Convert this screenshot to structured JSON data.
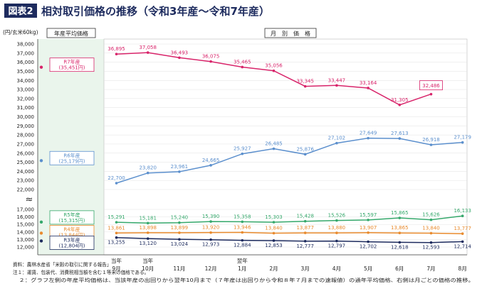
{
  "figure": {
    "badge": "図表2",
    "title": "相対取引価格の推移（令和3年産～令和7年産）",
    "unit": "(円/玄米60kg)",
    "header_left": "年産平均価格",
    "header_right": "月　別　価　格",
    "axis_break_symbol": "≈",
    "notes": [
      "資料：農林水産省「米穀の取引に関する報告」",
      "注１：運賃、包装代、消費税相当額を含む１等米の価格である。",
      "　２：グラフ左側の年産平均価格は、当該年産の出回りから翌年10月まで（７年産は出回りから令和８年７月までの速報値）の通年平均価格、右側は月ごとの価格の推移。"
    ]
  },
  "chart_data": {
    "type": "line",
    "x_upper_labels": [
      "当年",
      "当年",
      "",
      "",
      "翌年",
      "",
      "",
      "",
      "",
      "",
      "",
      ""
    ],
    "categories": [
      "9月",
      "10月",
      "11月",
      "12月",
      "1月",
      "2月",
      "3月",
      "4月",
      "5月",
      "6月",
      "7月",
      "8月"
    ],
    "y_ticks": [
      "12,000",
      "13,000",
      "14,000",
      "15,000",
      "16,000",
      "17,000",
      "22,000",
      "23,000",
      "24,000",
      "25,000",
      "26,000",
      "27,000",
      "28,000",
      "29,000",
      "30,000",
      "31,000",
      "32,000",
      "33,000",
      "34,000",
      "35,000",
      "36,000",
      "37,000",
      "38,000"
    ],
    "y_break": [
      17000,
      22000
    ],
    "series": [
      {
        "key": "r7",
        "name": "R7年産",
        "avg_label": "(35,451円)",
        "avg": 35451,
        "color": "#d8246a",
        "values": [
          36895,
          37058,
          36493,
          36075,
          35465,
          35056,
          33345,
          33447,
          33164,
          31305,
          32486,
          null
        ],
        "labels": [
          "36,895",
          "37,058",
          "36,493",
          "36,075",
          "35,465",
          "35,056",
          "33,345",
          "33,447",
          "33,164",
          "31,305",
          "32,486",
          ""
        ]
      },
      {
        "key": "r6",
        "name": "R6年産",
        "avg_label": "(25,179円)",
        "avg": 25179,
        "color": "#5b8fcd",
        "values": [
          22700,
          23820,
          23961,
          24665,
          25927,
          26485,
          25876,
          27102,
          27649,
          27613,
          26918,
          27179
        ],
        "labels": [
          "22,700",
          "23,820",
          "23,961",
          "24,665",
          "25,927",
          "26,485",
          "25,876",
          "27,102",
          "27,649",
          "27,613",
          "26,918",
          "27,179"
        ]
      },
      {
        "key": "r5",
        "name": "R5年産",
        "avg_label": "(15,315円)",
        "avg": 15315,
        "color": "#35a86b",
        "values": [
          15291,
          15181,
          15240,
          15390,
          15358,
          15303,
          15428,
          15526,
          15597,
          15865,
          15626,
          16133
        ],
        "labels": [
          "15,291",
          "15,181",
          "15,240",
          "15,390",
          "15,358",
          "15,303",
          "15,428",
          "15,526",
          "15,597",
          "15,865",
          "15,626",
          "16,133"
        ]
      },
      {
        "key": "r4",
        "name": "R4年産",
        "avg_label": "(13,844円)",
        "avg": 13844,
        "color": "#e88a2d",
        "values": [
          13861,
          13898,
          13899,
          13920,
          13946,
          13840,
          13877,
          13880,
          13907,
          13865,
          13840,
          13777
        ],
        "labels": [
          "13,861",
          "13,898",
          "13,899",
          "13,920",
          "13,946",
          "13,840",
          "13,877",
          "13,880",
          "13,907",
          "13,865",
          "13,840",
          "13,777"
        ]
      },
      {
        "key": "r3",
        "name": "R3年産",
        "avg_label": "(12,804円)",
        "avg": 12804,
        "color": "#1d2b5e",
        "values": [
          13255,
          13120,
          13024,
          12973,
          12884,
          12853,
          12777,
          12797,
          12702,
          12618,
          12593,
          12714
        ],
        "labels": [
          "13,255",
          "13,120",
          "13,024",
          "12,973",
          "12,884",
          "12,853",
          "12,777",
          "12,797",
          "12,702",
          "12,618",
          "12,593",
          "12,714"
        ]
      }
    ]
  }
}
